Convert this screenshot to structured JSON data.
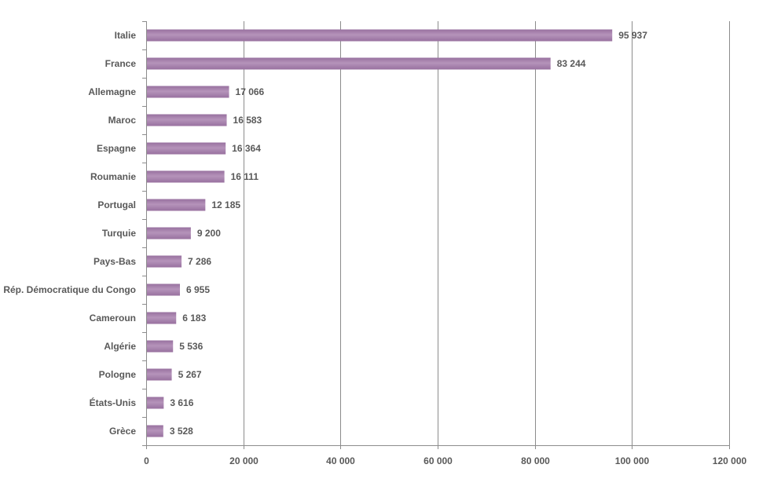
{
  "chart_data": {
    "type": "bar",
    "orientation": "horizontal",
    "categories": [
      "Italie",
      "France",
      "Allemagne",
      "Maroc",
      "Espagne",
      "Roumanie",
      "Portugal",
      "Turquie",
      "Pays-Bas",
      "Rép. Démocratique du Congo",
      "Cameroun",
      "Algérie",
      "Pologne",
      "États-Unis",
      "Grèce"
    ],
    "values": [
      95937,
      83244,
      17066,
      16583,
      16364,
      16111,
      12185,
      9200,
      7286,
      6955,
      6183,
      5536,
      5267,
      3616,
      3528
    ],
    "value_labels": [
      "95 937",
      "83 244",
      "17 066",
      "16 583",
      "16 364",
      "16 111",
      "12 185",
      "9 200",
      "7 286",
      "6 955",
      "6 183",
      "5 536",
      "5 267",
      "3 616",
      "3 528"
    ],
    "xlim": [
      0,
      120000
    ],
    "x_ticks": [
      0,
      20000,
      40000,
      60000,
      80000,
      100000,
      120000
    ],
    "x_tick_labels": [
      "0",
      "20 000",
      "40 000",
      "60 000",
      "80 000",
      "100 000",
      "120 000"
    ],
    "title": "",
    "xlabel": "",
    "ylabel": "",
    "grid": "vertical",
    "bar_color": "#98719f",
    "bar_highlight_color": "#b593ba"
  }
}
